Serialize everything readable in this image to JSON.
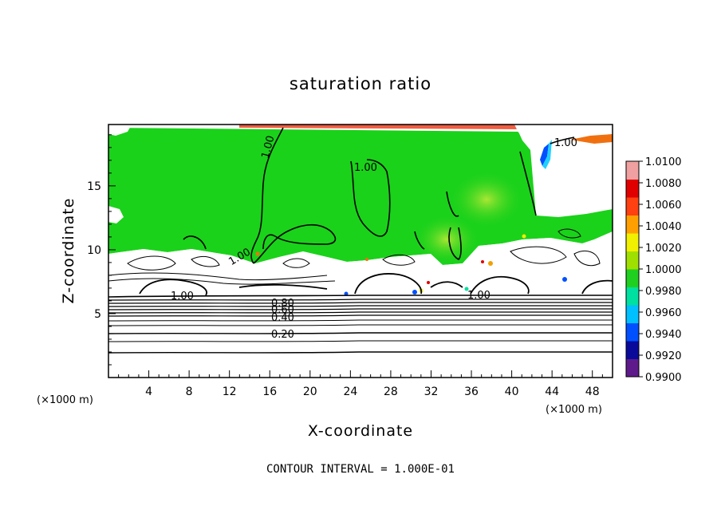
{
  "chart_data": {
    "type": "heatmap",
    "title": "saturation ratio",
    "xlabel": "X-coordinate",
    "ylabel": "Z-coordinate",
    "x_unit_label": "(×1000 m)",
    "y_unit_label": "(×1000 m)",
    "xlim": [
      0,
      50
    ],
    "ylim": [
      0,
      19.8
    ],
    "x_ticks": [
      "4",
      "8",
      "12",
      "16",
      "20",
      "24",
      "28",
      "32",
      "36",
      "40",
      "44",
      "48"
    ],
    "y_ticks": [
      "5",
      "10",
      "15"
    ],
    "contour_interval_text": "CONTOUR INTERVAL = 1.000E-01",
    "contour_labels": [
      "1.00",
      "1.00",
      "1.00",
      "1.00",
      "1.00",
      "1.00",
      "0.80",
      "0.60",
      "0.40",
      "0.20"
    ],
    "colorbar": {
      "min": 0.99,
      "max": 1.01,
      "labels": [
        "1.0100",
        "1.0080",
        "1.0060",
        "1.0040",
        "1.0020",
        "1.0000",
        "0.9980",
        "0.9960",
        "0.9940",
        "0.9920",
        "0.9900"
      ],
      "colors": [
        "#5e1a8a",
        "#0a0a9a",
        "#0050ff",
        "#00c0ff",
        "#00e0a0",
        "#20d020",
        "#a0e000",
        "#f0f000",
        "#ffa000",
        "#ff4010",
        "#e00000",
        "#f0a0a0"
      ]
    },
    "grid": false
  }
}
